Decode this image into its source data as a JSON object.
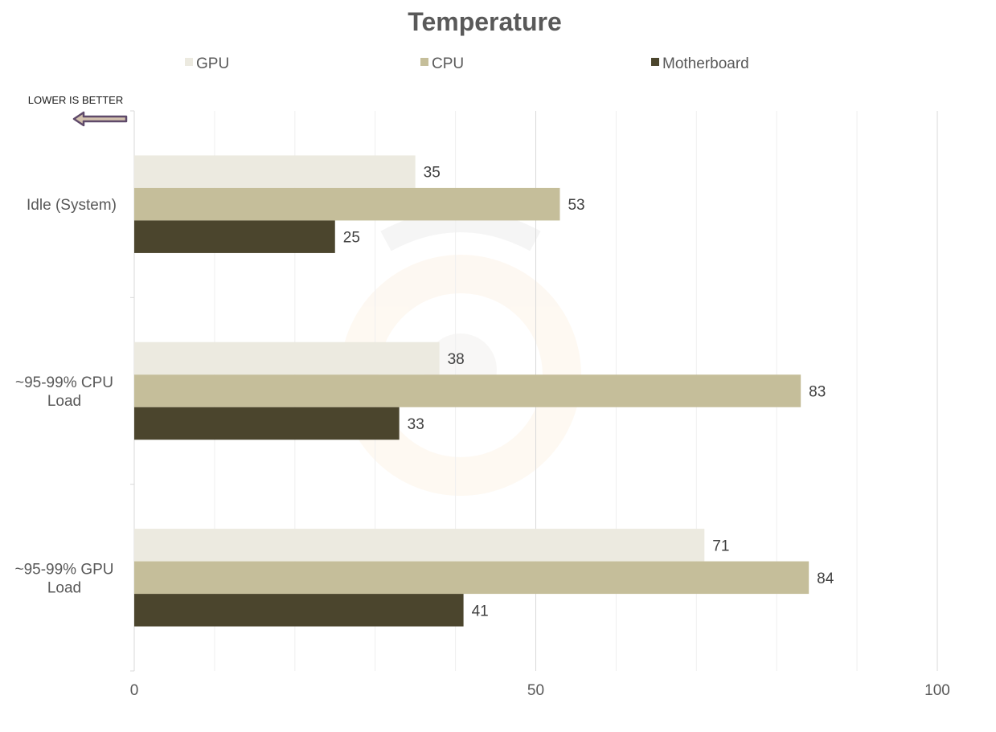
{
  "chart_data": {
    "type": "bar",
    "orientation": "horizontal",
    "title": "Temperature",
    "note": "LOWER IS BETTER",
    "categories": [
      "Idle (System)",
      "~95-99% CPU Load",
      "~95-99% GPU Load"
    ],
    "series": [
      {
        "name": "GPU",
        "color": "#eceae0",
        "values": [
          35,
          38,
          71
        ]
      },
      {
        "name": "CPU",
        "color": "#c5be9a",
        "values": [
          53,
          83,
          84
        ]
      },
      {
        "name": "Motherboard",
        "color": "#4b452d",
        "values": [
          25,
          33,
          41
        ]
      }
    ],
    "xlim": [
      0,
      100
    ],
    "xticks": [
      0,
      50,
      100
    ],
    "grid": true,
    "legend_position": "top"
  }
}
